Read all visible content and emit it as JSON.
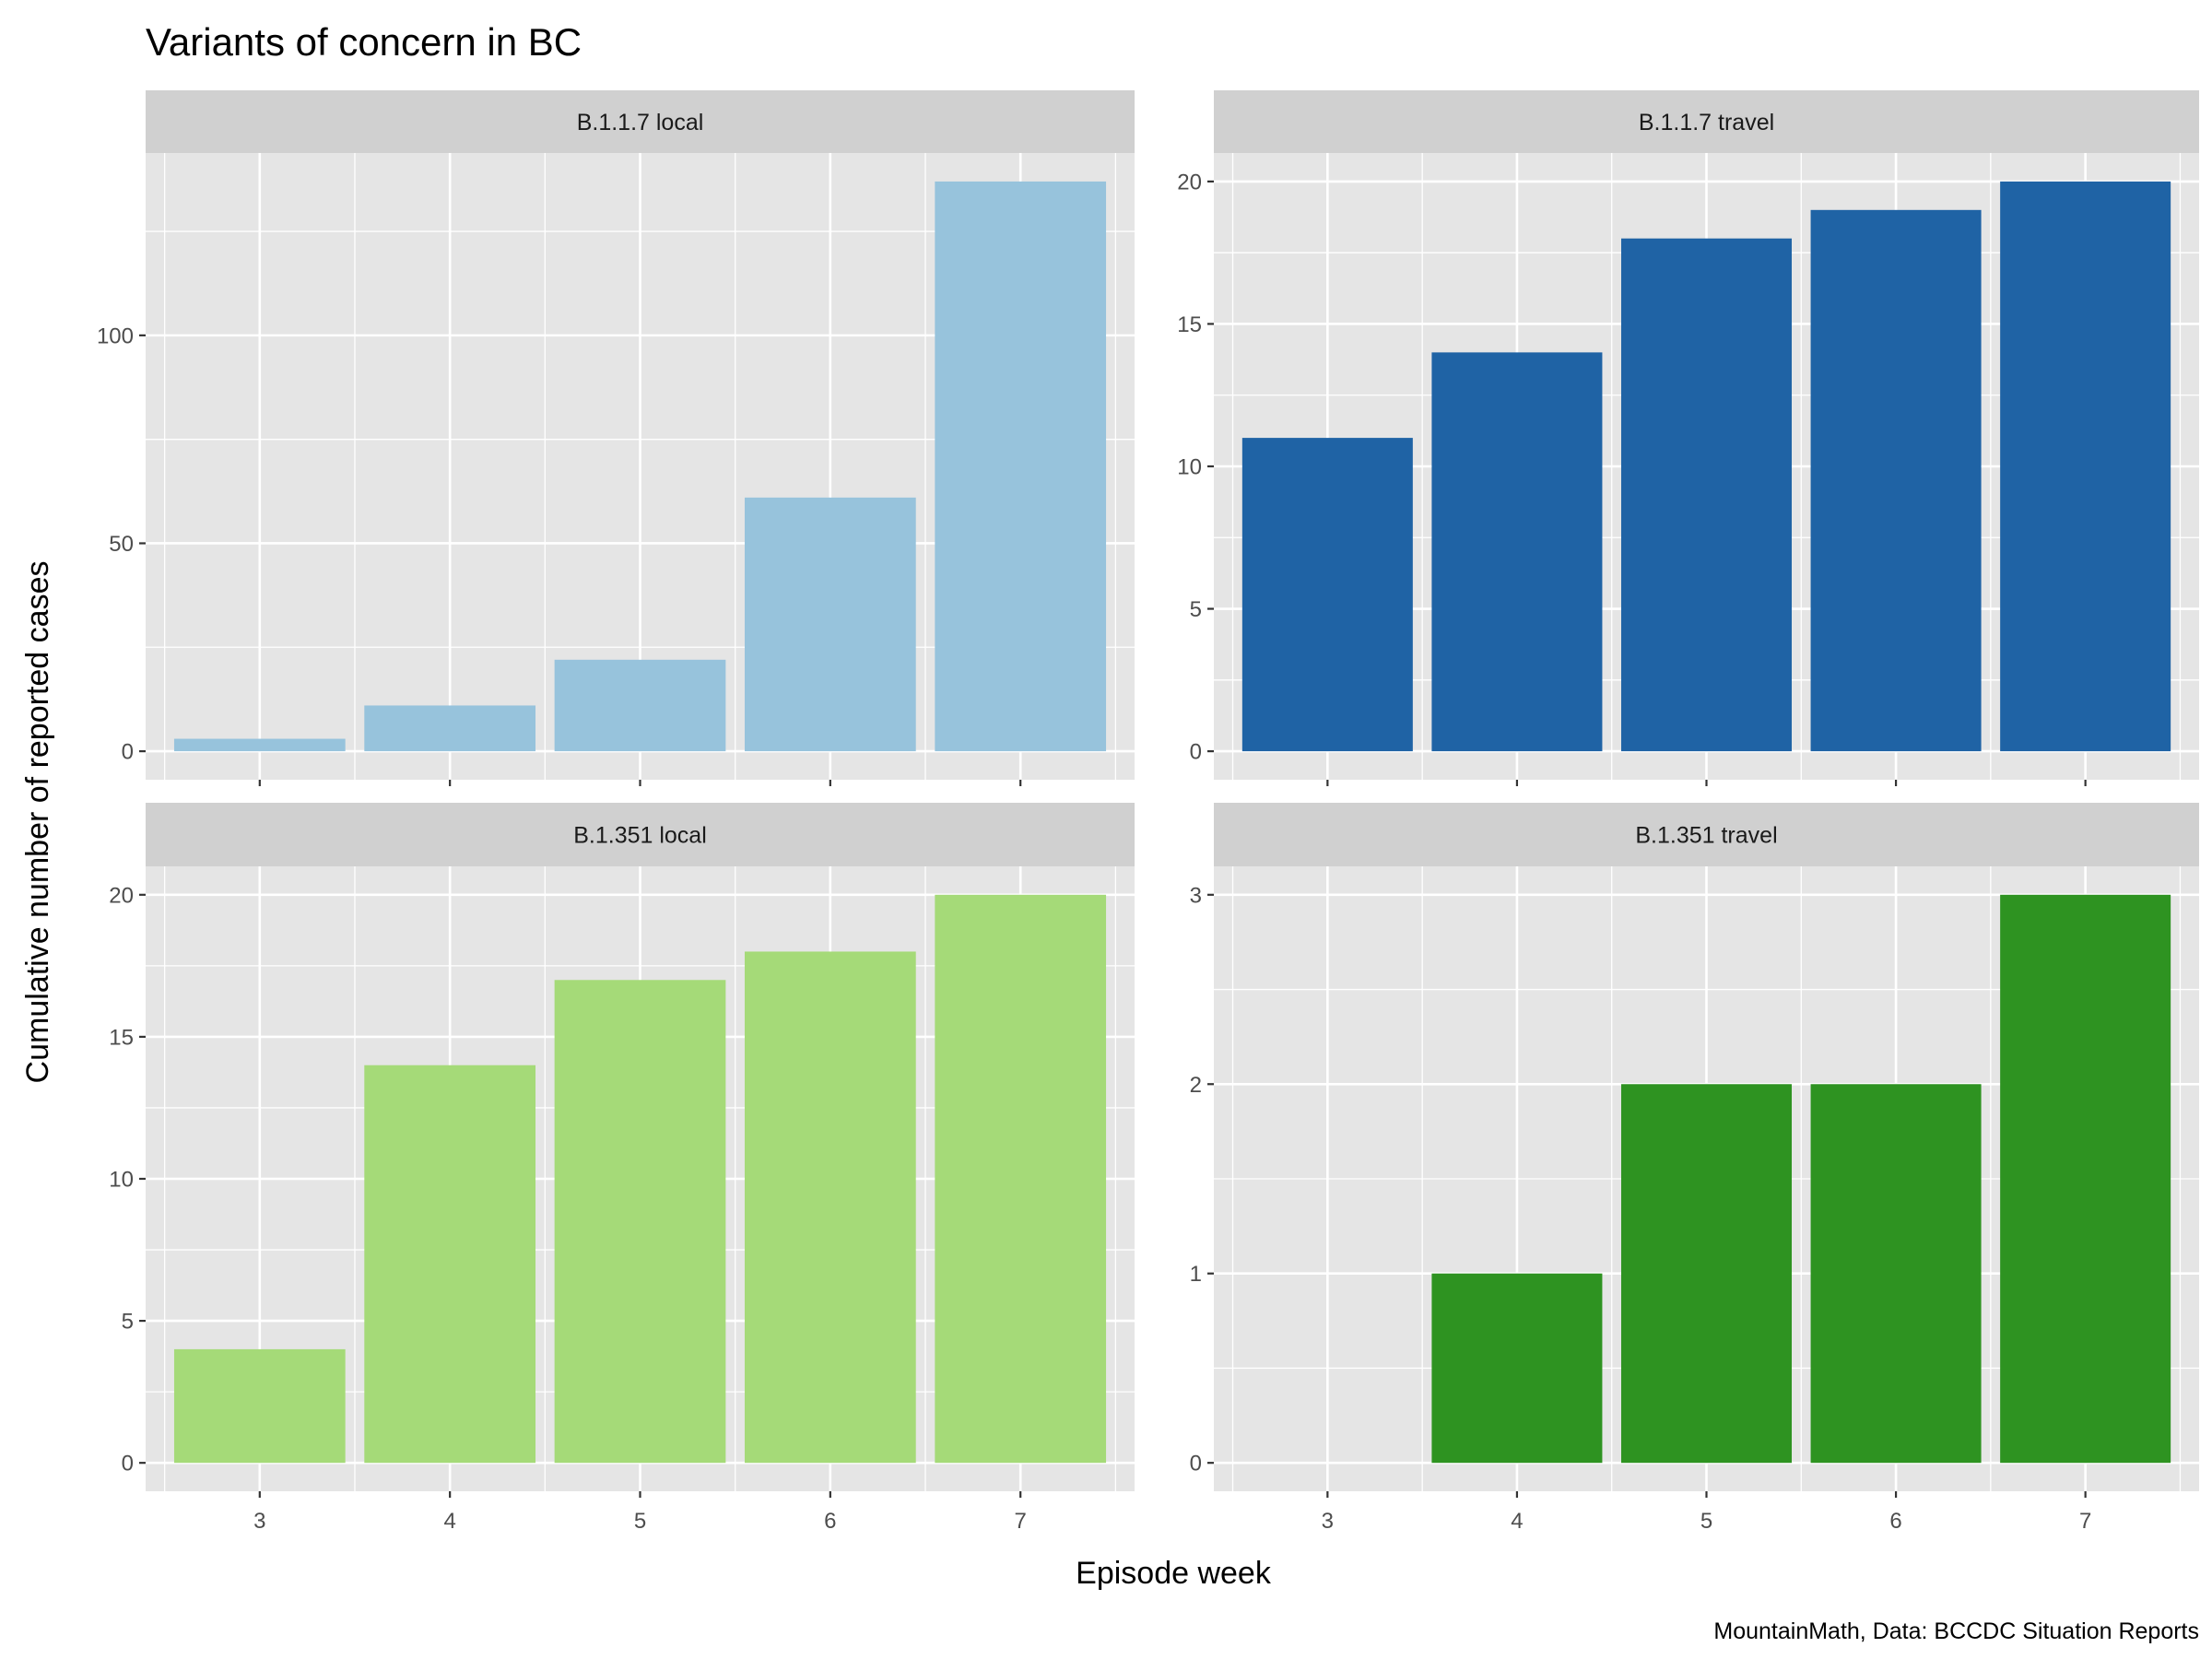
{
  "chart_data": {
    "type": "bar",
    "title": "Variants of concern in BC",
    "xlabel": "Episode week",
    "ylabel": "Cumulative number of reported cases",
    "caption": "MountainMath, Data: BCCDC Situation Reports",
    "x": [
      3,
      4,
      5,
      6,
      7
    ],
    "x_tick_labels": [
      "3",
      "4",
      "5",
      "6",
      "7"
    ],
    "grid": true,
    "facets": [
      {
        "name": "B.1.1.7 local",
        "color": "#97C3DC",
        "values": [
          3,
          11,
          22,
          61,
          137
        ],
        "yticks": [
          0,
          50,
          100
        ],
        "ytick_labels": [
          "0",
          "50",
          "100"
        ],
        "ylim": [
          0,
          137
        ]
      },
      {
        "name": "B.1.1.7 travel",
        "color": "#1F63A5",
        "values": [
          11,
          14,
          18,
          19,
          20
        ],
        "yticks": [
          0,
          5,
          10,
          15,
          20
        ],
        "ytick_labels": [
          "0",
          "5",
          "10",
          "15",
          "20"
        ],
        "ylim": [
          0,
          20
        ]
      },
      {
        "name": "B.1.351 local",
        "color": "#A5DA78",
        "values": [
          4,
          14,
          17,
          18,
          20
        ],
        "yticks": [
          0,
          5,
          10,
          15,
          20
        ],
        "ytick_labels": [
          "0",
          "5",
          "10",
          "15",
          "20"
        ],
        "ylim": [
          0,
          20
        ]
      },
      {
        "name": "B.1.351 travel",
        "color": "#2E9321",
        "values": [
          0,
          1,
          2,
          2,
          3
        ],
        "yticks": [
          0,
          1,
          2,
          3
        ],
        "ytick_labels": [
          "0",
          "1",
          "2",
          "3"
        ],
        "ylim": [
          0,
          3
        ]
      }
    ]
  }
}
